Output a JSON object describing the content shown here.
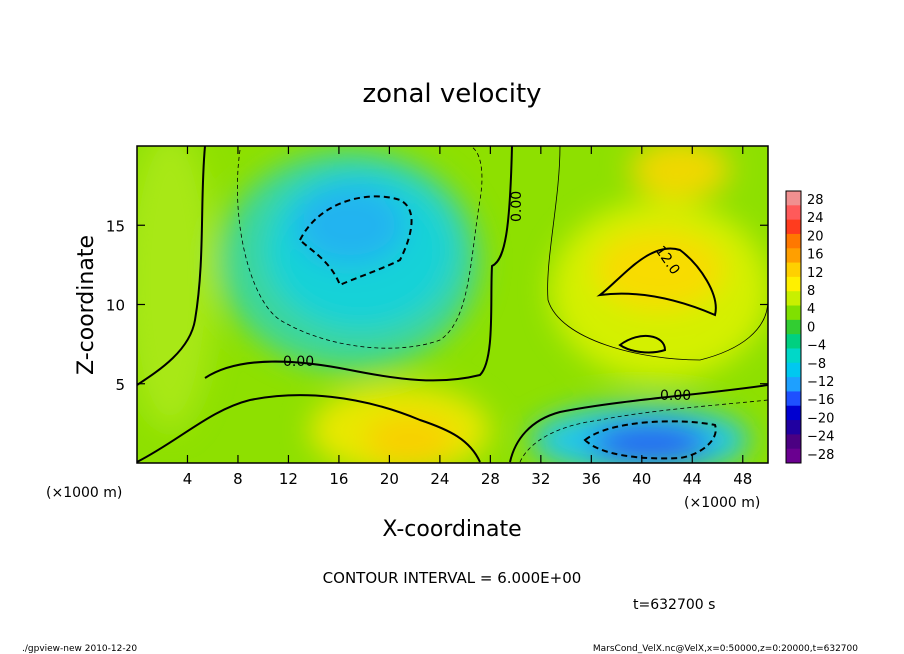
{
  "chart_data": {
    "type": "heatmap",
    "title": "zonal velocity",
    "xlabel": "X-coordinate",
    "ylabel": "Z-coordinate",
    "x_unit": "(×1000 m)",
    "y_unit": "(×1000 m)",
    "xlim": [
      0,
      50
    ],
    "ylim": [
      0,
      20
    ],
    "x_ticks": [
      4,
      8,
      12,
      16,
      20,
      24,
      28,
      32,
      36,
      40,
      44,
      48
    ],
    "y_ticks": [
      5,
      10,
      15
    ],
    "colorbar": {
      "labels": [
        28,
        24,
        20,
        16,
        12,
        8,
        4,
        0,
        -4,
        -8,
        -12,
        -16,
        -20,
        -24,
        -28
      ],
      "colors": [
        "#f09090",
        "#ff5a5a",
        "#ff3c1e",
        "#ff7800",
        "#ff9f00",
        "#ffd000",
        "#fff000",
        "#c8f000",
        "#80e000",
        "#32cd32",
        "#00d080",
        "#00d8c8",
        "#00c8f0",
        "#1ea0ff",
        "#1e50ff",
        "#0000d0",
        "#2000a0",
        "#4b0082",
        "#6a0090"
      ]
    },
    "contour_labels": [
      "0.00",
      "0.00",
      "12.0",
      "0.00"
    ],
    "contour_interval": "CONTOUR INTERVAL = 6.000E+00",
    "time": "t=632700 s",
    "field_points": [
      {
        "x": 20,
        "z": 15.5,
        "u": -14
      },
      {
        "x": 41,
        "z": 1.5,
        "u": -18
      },
      {
        "x": 44,
        "z": 10.5,
        "u": 13
      },
      {
        "x": 41,
        "z": 7.5,
        "u": 12
      },
      {
        "x": 46,
        "z": 18,
        "u": 8
      },
      {
        "x": 20,
        "z": 3,
        "u": 10
      },
      {
        "x": 3,
        "z": 2,
        "u": 2
      },
      {
        "x": 3,
        "z": 17,
        "u": 0
      }
    ]
  },
  "footer": {
    "left": "./gpview-new   2010-12-20",
    "right": "MarsCond_VelX.nc@VelX,x=0:50000,z=0:20000,t=632700"
  }
}
